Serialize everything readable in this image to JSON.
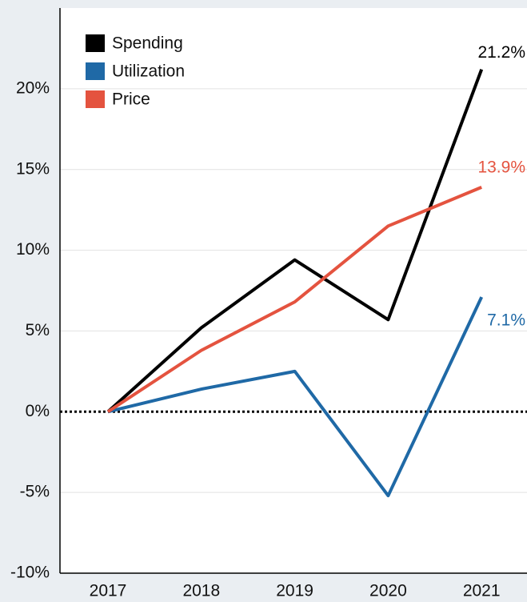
{
  "chart_data": {
    "type": "line",
    "categories": [
      "2017",
      "2018",
      "2019",
      "2020",
      "2021"
    ],
    "series": [
      {
        "name": "Spending",
        "color": "#000000",
        "values": [
          0,
          5.2,
          9.4,
          5.7,
          21.2
        ],
        "value_labels": [
          null,
          null,
          null,
          null,
          "21.2%"
        ]
      },
      {
        "name": "Utilization",
        "color": "#1f69a6",
        "values": [
          0,
          1.4,
          2.5,
          -5.2,
          7.1
        ],
        "value_labels": [
          null,
          null,
          null,
          null,
          "7.1%"
        ]
      },
      {
        "name": "Price",
        "color": "#e4533f",
        "values": [
          0,
          3.8,
          6.8,
          11.5,
          13.9
        ],
        "value_labels": [
          null,
          null,
          null,
          null,
          "13.9%"
        ]
      }
    ],
    "ylim": [
      -10,
      25
    ],
    "yticks": [
      {
        "value": -10,
        "label": "-10%"
      },
      {
        "value": -5,
        "label": "-5%"
      },
      {
        "value": 0,
        "label": "0%"
      },
      {
        "value": 5,
        "label": "5%"
      },
      {
        "value": 10,
        "label": "10%"
      },
      {
        "value": 15,
        "label": "15%"
      },
      {
        "value": 20,
        "label": "20%"
      }
    ],
    "grid": true,
    "legend": "top-left"
  }
}
